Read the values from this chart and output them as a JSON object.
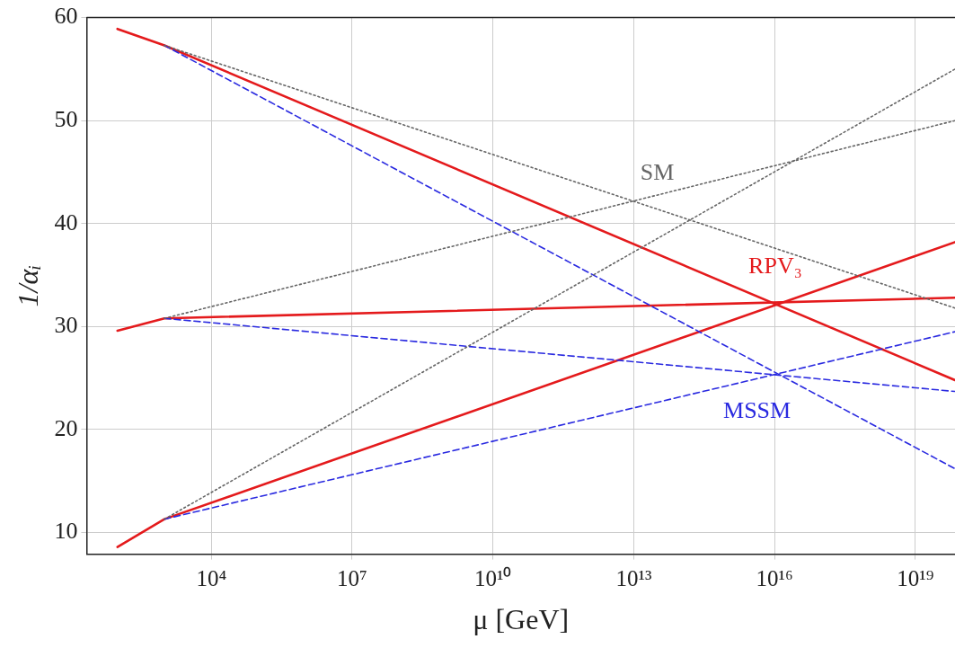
{
  "chart_data": {
    "type": "line",
    "xlabel": "μ [GeV]",
    "ylabel": "1/αᵢ",
    "log": "x",
    "grid": true,
    "legend": false,
    "marker": "none",
    "xlim": [
      22,
      7e+19
    ],
    "xticks": [
      {
        "value": 10000.0,
        "label": "10⁴"
      },
      {
        "value": 10000000.0,
        "label": "10⁷"
      },
      {
        "value": 10000000000.0,
        "label": "10¹⁰"
      },
      {
        "value": 10000000000000.0,
        "label": "10¹³"
      },
      {
        "value": 1e+16,
        "label": "10¹⁶"
      },
      {
        "value": 1e+19,
        "label": "10¹⁹"
      }
    ],
    "ylim": [
      7.9,
      60
    ],
    "yticks": [
      10,
      20,
      30,
      40,
      50,
      60
    ],
    "series": [
      {
        "color": "#666666",
        "line_style": "dotted",
        "x": [
          1000,
          7e+19
        ],
        "values": [
          57.3,
          31.8
        ]
      },
      {
        "name": "SM",
        "color": "#666666",
        "line_style": "dotted",
        "x": [
          1000,
          7e+19
        ],
        "values": [
          30.8,
          50.0
        ]
      },
      {
        "color": "#666666",
        "line_style": "dotted",
        "x": [
          1000,
          7e+19
        ],
        "values": [
          11.3,
          55.0
        ]
      },
      {
        "color": "#2a2ae0",
        "line_style": "dashed",
        "x": [
          1000,
          7e+19
        ],
        "values": [
          57.3,
          16.2
        ]
      },
      {
        "color": "#2a2ae0",
        "line_style": "dashed",
        "x": [
          1000,
          7e+19
        ],
        "values": [
          30.8,
          23.7
        ]
      },
      {
        "name": "MSSM",
        "color": "#2a2ae0",
        "line_style": "dashed",
        "x": [
          1000,
          7e+19
        ],
        "values": [
          11.3,
          29.5
        ]
      },
      {
        "color": "#e41a1c",
        "line_style": "solid",
        "x": [
          100,
          1000,
          7e+19
        ],
        "values": [
          58.9,
          57.3,
          24.8
        ]
      },
      {
        "color": "#e41a1c",
        "line_style": "solid",
        "x": [
          100,
          1000,
          7e+19
        ],
        "values": [
          29.6,
          30.8,
          32.8
        ]
      },
      {
        "name": "RPV₃",
        "color": "#e41a1c",
        "line_style": "solid",
        "x": [
          100,
          1000,
          7e+19
        ],
        "values": [
          8.6,
          11.3,
          38.2
        ]
      }
    ]
  }
}
